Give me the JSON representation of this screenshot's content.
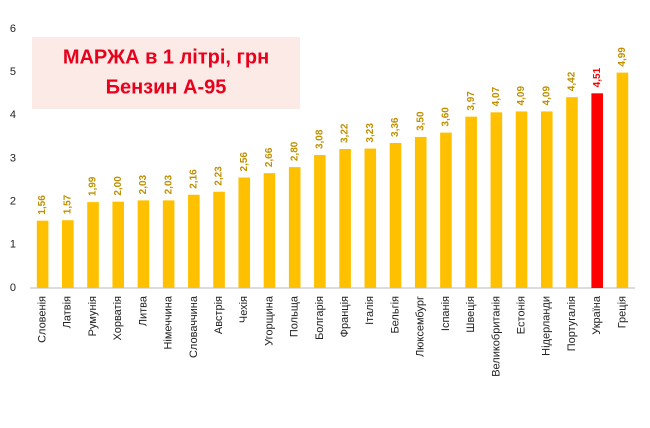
{
  "chart_data": {
    "type": "bar",
    "title": "МАРЖА в 1 літрі, грн",
    "subtitle": "Бензин А-95",
    "categories": [
      "Словенія",
      "Латвія",
      "Румунія",
      "Хорватія",
      "Литва",
      "Німеччина",
      "Словаччина",
      "Австрія",
      "Чехія",
      "Угорщина",
      "Польща",
      "Болгарія",
      "Франція",
      "Італія",
      "Бельгія",
      "Люксембург",
      "Іспанія",
      "Швеція",
      "Великобританія",
      "Естонія",
      "Нідерланди",
      "Португалія",
      "Україна",
      "Греція"
    ],
    "values": [
      1.56,
      1.57,
      1.99,
      2.0,
      2.03,
      2.03,
      2.16,
      2.23,
      2.56,
      2.66,
      2.8,
      3.08,
      3.22,
      3.23,
      3.36,
      3.5,
      3.6,
      3.97,
      4.07,
      4.09,
      4.09,
      4.42,
      4.51,
      4.99
    ],
    "value_labels": [
      "1,56",
      "1,57",
      "1,99",
      "2,00",
      "2,03",
      "2,03",
      "2,16",
      "2,23",
      "2,56",
      "2,66",
      "2,80",
      "3,08",
      "3,22",
      "3,23",
      "3,36",
      "3,50",
      "3,60",
      "3,97",
      "4,07",
      "4,09",
      "4,09",
      "4,42",
      "4,51",
      "4,99"
    ],
    "colors": [
      "#ffc000",
      "#ffc000",
      "#ffc000",
      "#ffc000",
      "#ffc000",
      "#ffc000",
      "#ffc000",
      "#ffc000",
      "#ffc000",
      "#ffc000",
      "#ffc000",
      "#ffc000",
      "#ffc000",
      "#ffc000",
      "#ffc000",
      "#ffc000",
      "#ffc000",
      "#ffc000",
      "#ffc000",
      "#ffc000",
      "#ffc000",
      "#ffc000",
      "#ff0000",
      "#ffc000"
    ],
    "value_label_colors": [
      "#bf9000",
      "#bf9000",
      "#bf9000",
      "#bf9000",
      "#bf9000",
      "#bf9000",
      "#bf9000",
      "#bf9000",
      "#bf9000",
      "#bf9000",
      "#bf9000",
      "#bf9000",
      "#bf9000",
      "#bf9000",
      "#bf9000",
      "#bf9000",
      "#bf9000",
      "#bf9000",
      "#bf9000",
      "#bf9000",
      "#bf9000",
      "#bf9000",
      "#ff0000",
      "#bf9000"
    ],
    "ylim": [
      0,
      6
    ],
    "yticks": [
      0,
      1,
      2,
      3,
      4,
      5,
      6
    ],
    "grid": false
  }
}
